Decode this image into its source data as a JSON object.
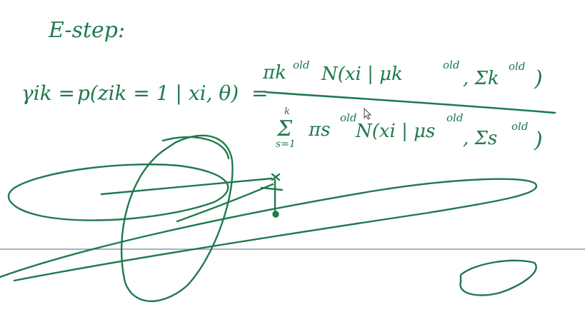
{
  "canvas": {
    "background": "#ffffff",
    "ink_color": "#1f7a4d",
    "page_divider_color": "#8a9ab3"
  },
  "handwriting": {
    "heading": "E-step:",
    "lhs": "γik =",
    "lhs_prob": "p(zik = 1 | xi, θ)",
    "equals": "=",
    "numerator": "πk N(xi | μk, Σk)",
    "numerator_pi": "πk",
    "numerator_sup": "old",
    "numerator_N": "N(xi | μk",
    "numerator_mu_sup": "old",
    "numerator_sigma": ", Σk",
    "numerator_sigma_sup": "old",
    "numerator_close": ")",
    "denominator_sum_top": "k",
    "denominator_sum_bottom": "s=1",
    "denominator_sigma": "Σ",
    "denominator_pi": "πs",
    "denominator_sup": "old",
    "denominator_N": "N(xi | μs",
    "denominator_mu_sup": "old",
    "denominator_sigma_s": ", Σs",
    "denominator_sigma_sup": "old",
    "denominator_close": ")"
  },
  "cursor": {
    "icon": "arrow-cursor-icon"
  }
}
